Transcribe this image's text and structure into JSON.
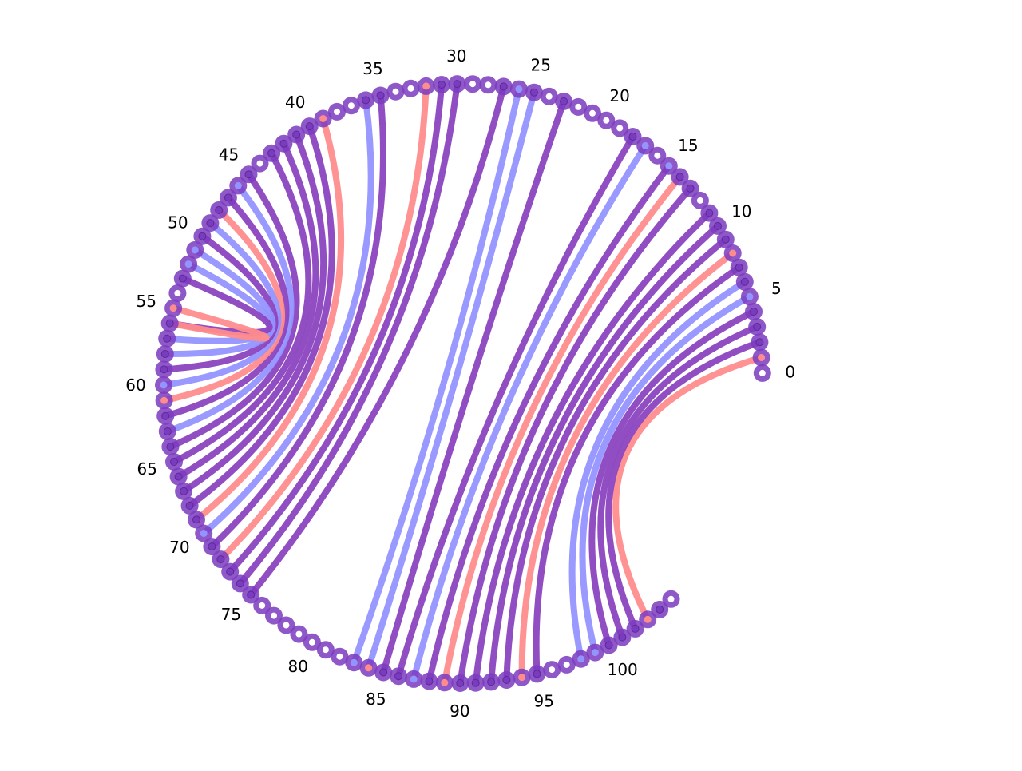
{
  "diagram": {
    "type": "arc-diagram",
    "node_count": 106,
    "tick_labels": [
      "0",
      "5",
      "10",
      "15",
      "20",
      "25",
      "30",
      "35",
      "40",
      "45",
      "50",
      "55",
      "60",
      "65",
      "70",
      "75",
      "80",
      "85",
      "90",
      "95",
      "100"
    ],
    "colors": {
      "node_ring": "#7b3bbf",
      "link_purple": "#8b44c0",
      "link_blue": "#9494ff",
      "link_red": "#ff8c8c",
      "center_white": "#ffffff"
    },
    "node_types": {
      "white": [
        0,
        12,
        16,
        19,
        20,
        21,
        22,
        24,
        28,
        29,
        33,
        34,
        37,
        38,
        44,
        54,
        76,
        77,
        78,
        79,
        80,
        81,
        82,
        96,
        97,
        105
      ],
      "red": [
        1,
        8,
        32,
        39,
        55,
        61,
        84,
        89,
        94,
        103
      ],
      "blue": [
        5,
        15,
        17,
        26,
        46,
        51,
        52,
        60,
        70,
        83,
        87,
        98,
        99
      ],
      "purple": [
        2,
        3,
        4,
        6,
        7,
        9,
        10,
        11,
        13,
        14,
        18,
        23,
        25,
        27,
        30,
        31,
        35,
        36,
        40,
        41,
        42,
        43,
        45,
        47,
        48,
        49,
        50,
        53,
        56,
        57,
        58,
        59,
        62,
        63,
        64,
        65,
        66,
        67,
        68,
        69,
        71,
        72,
        73,
        74,
        75,
        85,
        86,
        88,
        90,
        91,
        92,
        93,
        95,
        100,
        101,
        102,
        104
      ]
    },
    "links": [
      {
        "a": 1,
        "b": 103,
        "color": "red"
      },
      {
        "a": 2,
        "b": 102,
        "color": "purple"
      },
      {
        "a": 3,
        "b": 101,
        "color": "purple"
      },
      {
        "a": 4,
        "b": 100,
        "color": "purple"
      },
      {
        "a": 5,
        "b": 99,
        "color": "blue"
      },
      {
        "a": 6,
        "b": 98,
        "color": "blue"
      },
      {
        "a": 7,
        "b": 95,
        "color": "purple"
      },
      {
        "a": 8,
        "b": 94,
        "color": "red"
      },
      {
        "a": 9,
        "b": 93,
        "color": "purple"
      },
      {
        "a": 10,
        "b": 92,
        "color": "purple"
      },
      {
        "a": 11,
        "b": 91,
        "color": "purple"
      },
      {
        "a": 13,
        "b": 90,
        "color": "purple"
      },
      {
        "a": 14,
        "b": 89,
        "color": "red"
      },
      {
        "a": 15,
        "b": 88,
        "color": "purple"
      },
      {
        "a": 17,
        "b": 87,
        "color": "blue"
      },
      {
        "a": 18,
        "b": 86,
        "color": "purple"
      },
      {
        "a": 23,
        "b": 85,
        "color": "purple"
      },
      {
        "a": 25,
        "b": 84,
        "color": "blue"
      },
      {
        "a": 26,
        "b": 83,
        "color": "blue"
      },
      {
        "a": 27,
        "b": 75,
        "color": "purple"
      },
      {
        "a": 30,
        "b": 74,
        "color": "purple"
      },
      {
        "a": 31,
        "b": 73,
        "color": "purple"
      },
      {
        "a": 32,
        "b": 72,
        "color": "red"
      },
      {
        "a": 35,
        "b": 71,
        "color": "purple"
      },
      {
        "a": 36,
        "b": 70,
        "color": "blue"
      },
      {
        "a": 39,
        "b": 69,
        "color": "red"
      },
      {
        "a": 40,
        "b": 68,
        "color": "purple"
      },
      {
        "a": 41,
        "b": 67,
        "color": "purple"
      },
      {
        "a": 42,
        "b": 66,
        "color": "purple"
      },
      {
        "a": 43,
        "b": 65,
        "color": "purple"
      },
      {
        "a": 45,
        "b": 64,
        "color": "purple"
      },
      {
        "a": 46,
        "b": 63,
        "color": "blue"
      },
      {
        "a": 47,
        "b": 62,
        "color": "purple"
      },
      {
        "a": 48,
        "b": 61,
        "color": "red"
      },
      {
        "a": 49,
        "b": 60,
        "color": "blue"
      },
      {
        "a": 50,
        "b": 59,
        "color": "purple"
      },
      {
        "a": 51,
        "b": 58,
        "color": "blue"
      },
      {
        "a": 52,
        "b": 57,
        "color": "blue"
      },
      {
        "a": 53,
        "b": 56,
        "color": "purple"
      },
      {
        "a": 55,
        "b": 56,
        "color": "red"
      }
    ]
  }
}
